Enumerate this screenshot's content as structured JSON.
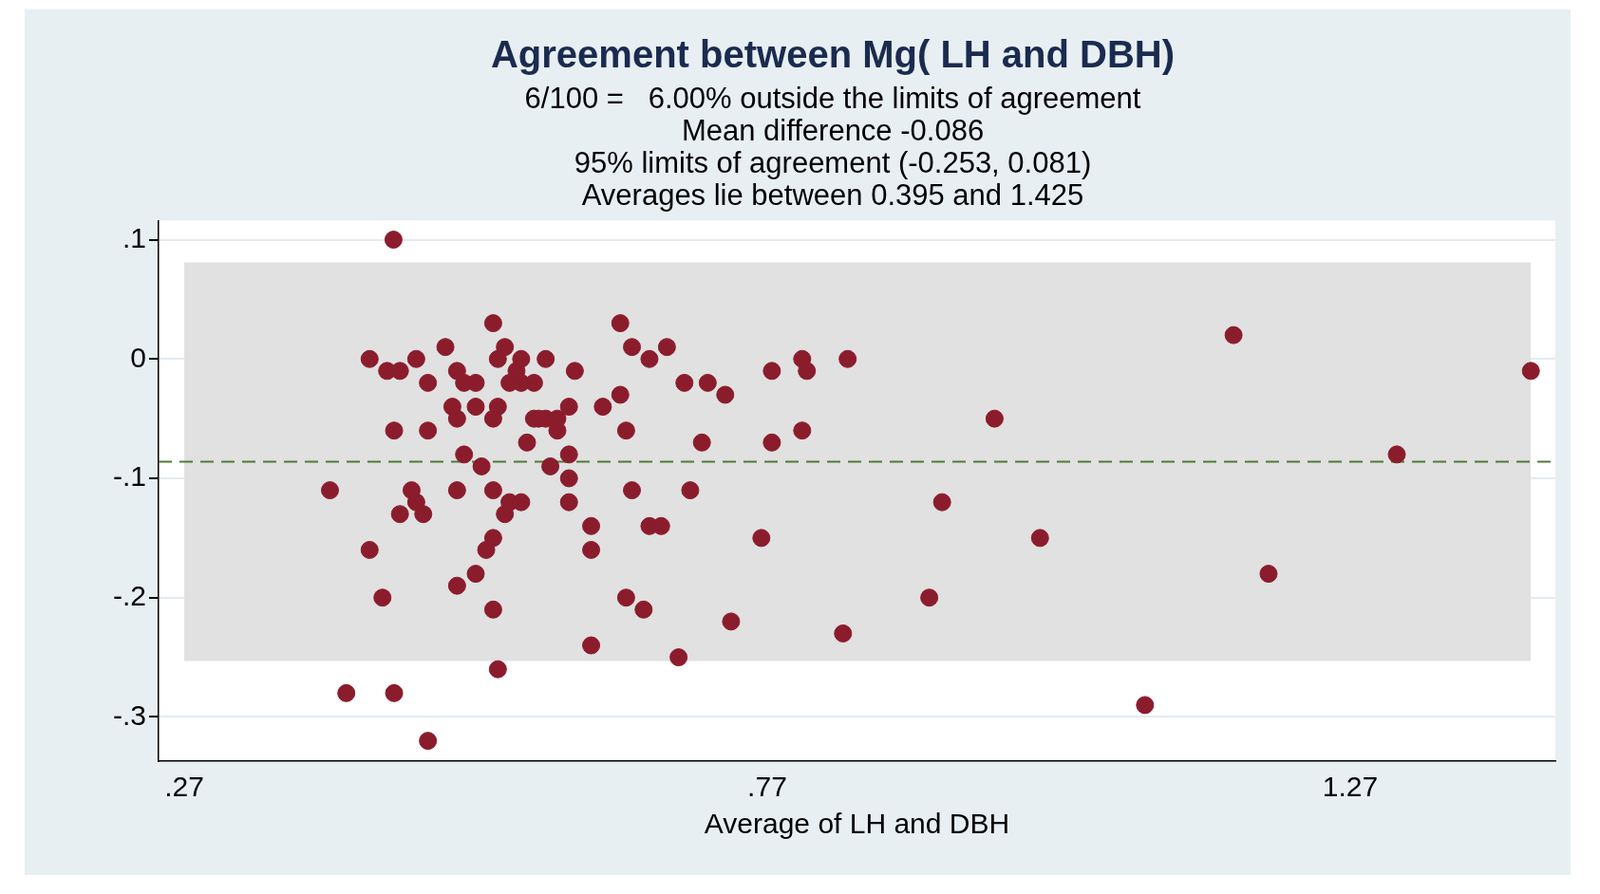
{
  "chart_data": {
    "type": "scatter",
    "title": "Agreement between Mg( LH and DBH)",
    "subtitle": [
      "6/100 =   6.00% outside the limits of agreement",
      "Mean difference -0.086",
      "95% limits of agreement (-0.253, 0.081)",
      "Averages lie between 0.395 and 1.425"
    ],
    "x_label": "Average of LH and DBH",
    "color": "#8b1c2c",
    "marker": "circle",
    "grid": true,
    "x": [
      0.4495,
      0.395,
      0.409,
      0.429,
      0.429,
      0.44,
      0.444,
      0.45,
      0.45,
      0.455,
      0.455,
      0.465,
      0.469,
      0.469,
      0.475,
      0.479,
      0.479,
      0.479,
      0.494,
      0.5,
      0.504,
      0.504,
      0.504,
      0.504,
      0.51,
      0.51,
      0.52,
      0.52,
      0.52,
      0.525,
      0.529,
      0.535,
      0.535,
      0.535,
      0.535,
      0.535,
      0.539,
      0.539,
      0.539,
      0.545,
      0.545,
      0.549,
      0.549,
      0.555,
      0.559,
      0.559,
      0.559,
      0.564,
      0.57,
      0.57,
      0.574,
      0.58,
      0.58,
      0.584,
      0.59,
      0.59,
      0.6,
      0.6,
      0.6,
      0.6,
      0.605,
      0.619,
      0.619,
      0.619,
      0.629,
      0.644,
      0.644,
      0.649,
      0.649,
      0.654,
      0.654,
      0.664,
      0.669,
      0.669,
      0.679,
      0.684,
      0.694,
      0.699,
      0.704,
      0.714,
      0.719,
      0.734,
      0.739,
      0.765,
      0.774,
      0.774,
      0.8,
      0.8,
      0.804,
      0.835,
      0.839,
      0.909,
      0.92,
      0.965,
      1.004,
      1.094,
      1.17,
      1.2,
      1.31,
      1.425
    ],
    "values": [
      0.1,
      -0.11,
      -0.28,
      0,
      -0.16,
      -0.2,
      -0.01,
      -0.06,
      -0.28,
      -0.01,
      -0.13,
      -0.11,
      0,
      -0.12,
      -0.13,
      -0.02,
      -0.06,
      -0.32,
      0.01,
      -0.04,
      -0.01,
      -0.05,
      -0.11,
      -0.19,
      -0.02,
      -0.08,
      -0.04,
      -0.02,
      -0.18,
      -0.09,
      -0.16,
      0.03,
      -0.05,
      -0.11,
      -0.15,
      -0.21,
      0,
      -0.04,
      -0.26,
      0.01,
      -0.13,
      -0.02,
      -0.12,
      -0.01,
      0,
      -0.02,
      -0.12,
      -0.07,
      -0.02,
      -0.05,
      -0.05,
      0,
      -0.05,
      -0.09,
      -0.06,
      -0.05,
      -0.04,
      -0.08,
      -0.1,
      -0.12,
      -0.01,
      -0.14,
      -0.16,
      -0.24,
      -0.04,
      0.03,
      -0.03,
      -0.06,
      -0.2,
      0.01,
      -0.11,
      -0.21,
      0,
      -0.14,
      -0.14,
      0.01,
      -0.25,
      -0.02,
      -0.11,
      -0.07,
      -0.02,
      -0.03,
      -0.22,
      -0.15,
      -0.01,
      -0.07,
      0,
      -0.06,
      -0.01,
      -0.23,
      0,
      -0.2,
      -0.12,
      -0.05,
      -0.15,
      -0.29,
      0.02,
      -0.18,
      -0.08,
      -0.01
    ],
    "reference_line": {
      "y": -0.086,
      "color": "#4f7a35",
      "line_style": "dashed"
    },
    "band": {
      "x": [
        0.27,
        1.425
      ],
      "y": [
        -0.253,
        0.081
      ],
      "color": "#e1e1e1"
    },
    "xlim": [
      0.248,
      1.446
    ],
    "ylim": [
      -0.337,
      0.116
    ],
    "xticks": [
      {
        "value": 0.27,
        "label": ".27"
      },
      {
        "value": 0.77,
        "label": ".77"
      },
      {
        "value": 1.27,
        "label": "1.27"
      }
    ],
    "yticks": [
      {
        "value": -0.3,
        "label": "-.3"
      },
      {
        "value": -0.2,
        "label": "-.2"
      },
      {
        "value": -0.1,
        "label": "-.1"
      },
      0,
      {
        "value": 0.1,
        "label": ".1"
      }
    ]
  }
}
